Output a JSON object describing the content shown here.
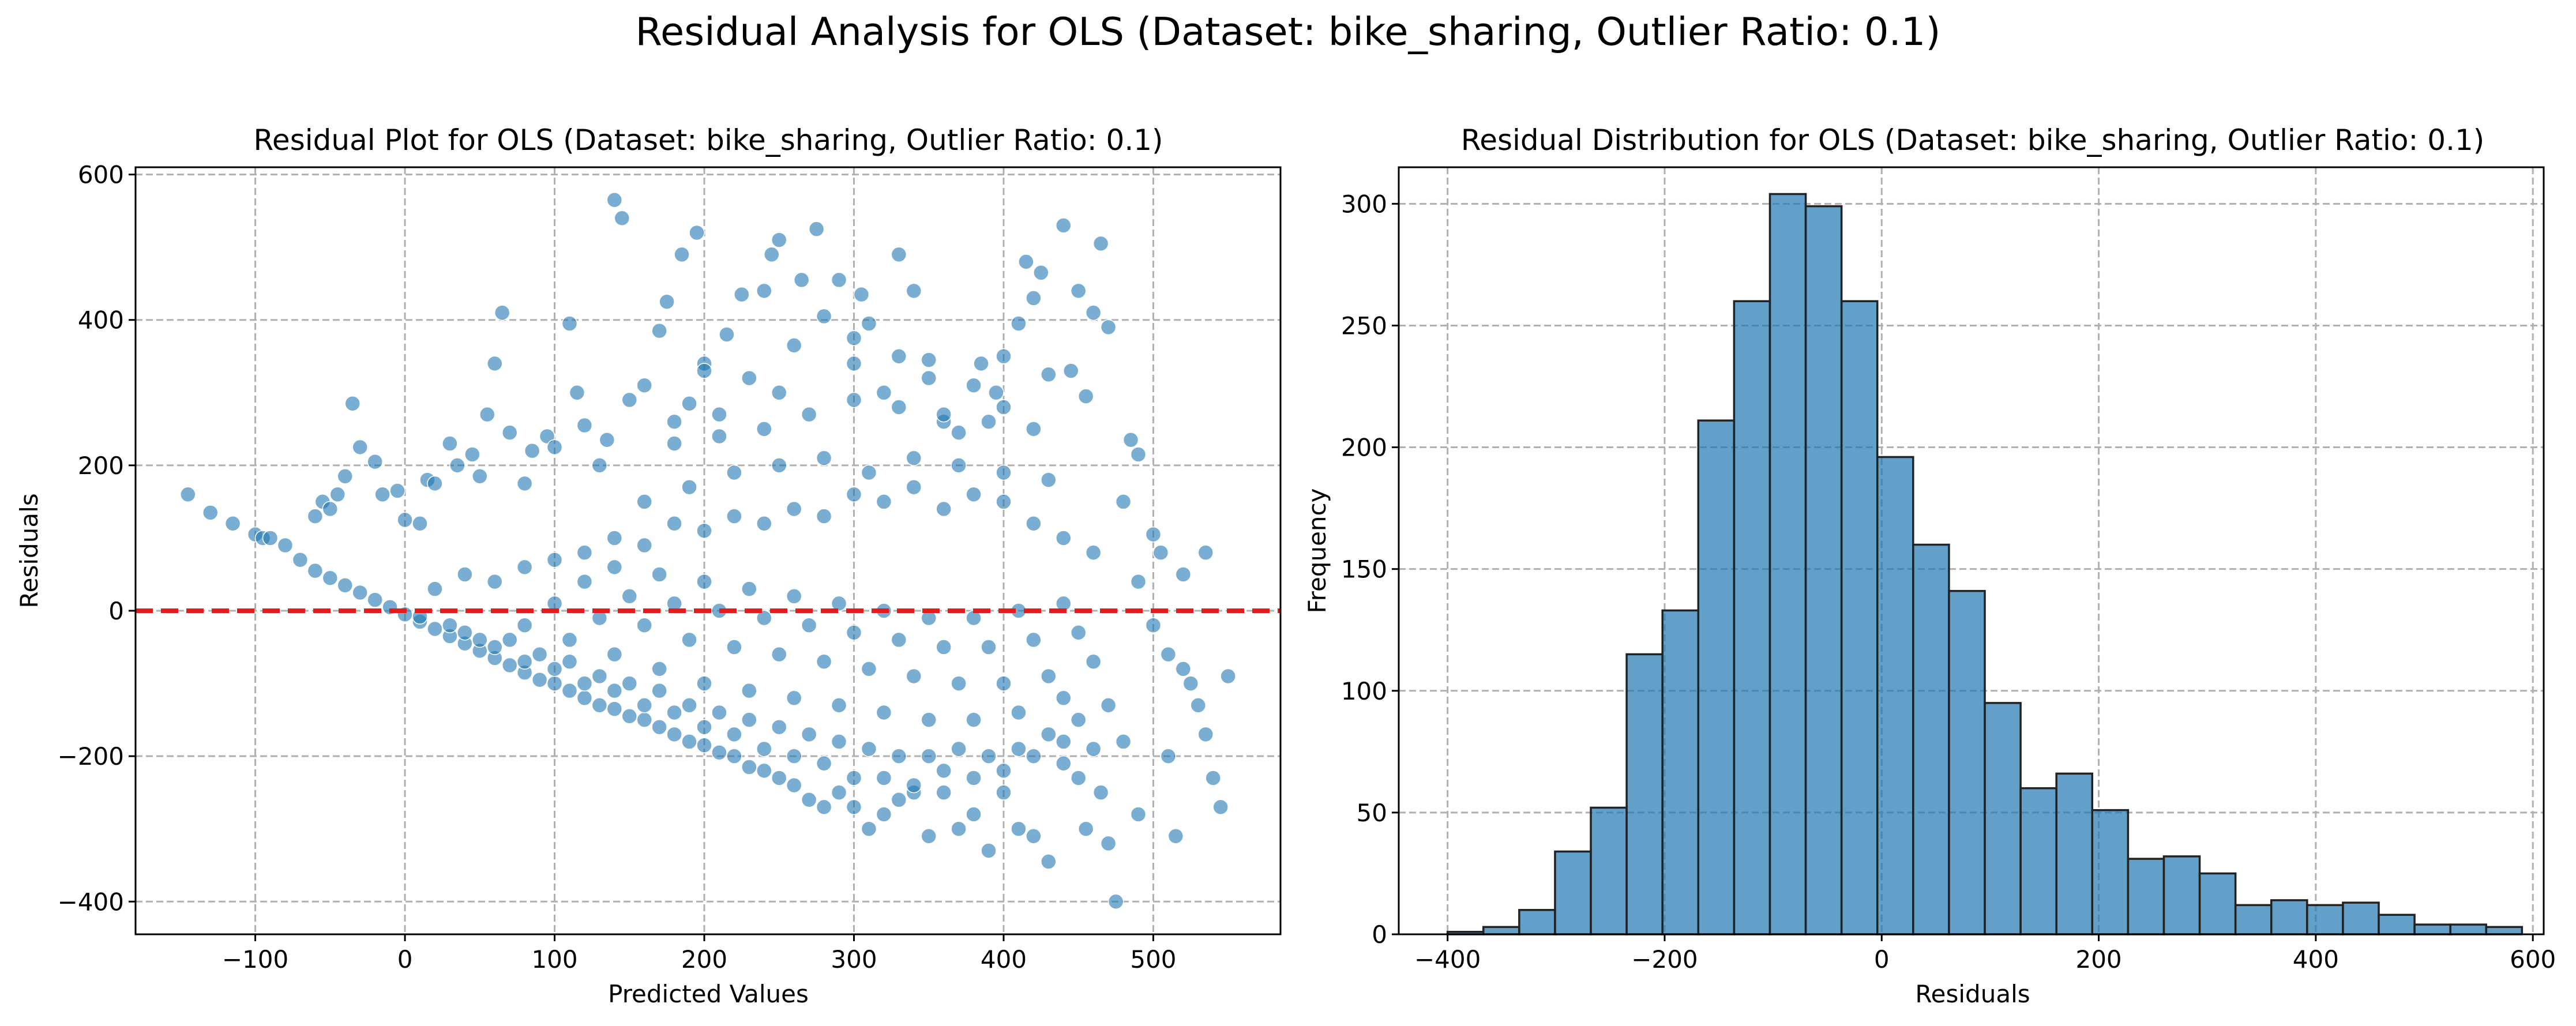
{
  "suptitle": "Residual Analysis for OLS (Dataset: bike_sharing, Outlier Ratio: 0.1)",
  "chart_data": [
    {
      "type": "scatter",
      "title": "Residual Plot for OLS (Dataset: bike_sharing, Outlier Ratio: 0.1)",
      "xlabel": "Predicted Values",
      "ylabel": "Residuals",
      "xlim": [
        -180,
        585
      ],
      "ylim": [
        -445,
        610
      ],
      "xticks": [
        -100,
        0,
        100,
        200,
        300,
        400,
        500
      ],
      "yticks": [
        -400,
        -200,
        0,
        200,
        400,
        600
      ],
      "tick_labels_x": [
        "−100",
        "0",
        "100",
        "200",
        "300",
        "400",
        "500"
      ],
      "tick_labels_y": [
        "−400",
        "−200",
        "0",
        "200",
        "400",
        "600"
      ],
      "grid": true,
      "reference_line": {
        "y": 0,
        "color": "#e41a1c",
        "style": "dashed"
      },
      "marker_color": "#1f77b4",
      "points": [
        [
          -145,
          160
        ],
        [
          -130,
          135
        ],
        [
          -115,
          120
        ],
        [
          -100,
          105
        ],
        [
          -95,
          100
        ],
        [
          -90,
          100
        ],
        [
          -80,
          90
        ],
        [
          -70,
          70
        ],
        [
          -60,
          130
        ],
        [
          -55,
          150
        ],
        [
          -50,
          140
        ],
        [
          -45,
          160
        ],
        [
          -40,
          185
        ],
        [
          -35,
          285
        ],
        [
          -30,
          225
        ],
        [
          -20,
          205
        ],
        [
          -15,
          160
        ],
        [
          -5,
          165
        ],
        [
          0,
          125
        ],
        [
          10,
          120
        ],
        [
          15,
          180
        ],
        [
          20,
          175
        ],
        [
          30,
          230
        ],
        [
          35,
          200
        ],
        [
          45,
          215
        ],
        [
          50,
          185
        ],
        [
          55,
          270
        ],
        [
          60,
          340
        ],
        [
          65,
          410
        ],
        [
          70,
          245
        ],
        [
          80,
          175
        ],
        [
          85,
          220
        ],
        [
          95,
          240
        ],
        [
          100,
          225
        ],
        [
          110,
          395
        ],
        [
          115,
          300
        ],
        [
          120,
          255
        ],
        [
          130,
          200
        ],
        [
          135,
          235
        ],
        [
          140,
          565
        ],
        [
          145,
          540
        ],
        [
          150,
          290
        ],
        [
          160,
          310
        ],
        [
          170,
          385
        ],
        [
          175,
          425
        ],
        [
          180,
          260
        ],
        [
          185,
          490
        ],
        [
          190,
          285
        ],
        [
          195,
          520
        ],
        [
          200,
          340
        ],
        [
          210,
          270
        ],
        [
          215,
          380
        ],
        [
          225,
          435
        ],
        [
          230,
          320
        ],
        [
          240,
          440
        ],
        [
          245,
          490
        ],
        [
          250,
          510
        ],
        [
          260,
          365
        ],
        [
          265,
          455
        ],
        [
          275,
          525
        ],
        [
          280,
          405
        ],
        [
          290,
          455
        ],
        [
          300,
          375
        ],
        [
          305,
          435
        ],
        [
          310,
          395
        ],
        [
          320,
          300
        ],
        [
          330,
          490
        ],
        [
          340,
          440
        ],
        [
          350,
          345
        ],
        [
          360,
          260
        ],
        [
          370,
          245
        ],
        [
          385,
          340
        ],
        [
          395,
          300
        ],
        [
          400,
          280
        ],
        [
          410,
          395
        ],
        [
          415,
          480
        ],
        [
          420,
          430
        ],
        [
          425,
          465
        ],
        [
          430,
          325
        ],
        [
          440,
          530
        ],
        [
          445,
          330
        ],
        [
          450,
          440
        ],
        [
          455,
          295
        ],
        [
          460,
          410
        ],
        [
          465,
          505
        ],
        [
          470,
          390
        ],
        [
          480,
          150
        ],
        [
          485,
          235
        ],
        [
          490,
          215
        ],
        [
          500,
          105
        ],
        [
          505,
          80
        ],
        [
          520,
          50
        ],
        [
          535,
          80
        ],
        [
          490,
          40
        ],
        [
          500,
          -20
        ],
        [
          510,
          -60
        ],
        [
          520,
          -80
        ],
        [
          525,
          -100
        ],
        [
          530,
          -130
        ],
        [
          535,
          -170
        ],
        [
          540,
          -230
        ],
        [
          545,
          -270
        ],
        [
          550,
          -90
        ],
        [
          510,
          -200
        ],
        [
          515,
          -310
        ],
        [
          490,
          -280
        ],
        [
          480,
          -180
        ],
        [
          475,
          -400
        ],
        [
          470,
          -320
        ],
        [
          465,
          -250
        ],
        [
          455,
          -300
        ],
        [
          450,
          -230
        ],
        [
          440,
          -210
        ],
        [
          430,
          -345
        ],
        [
          420,
          -310
        ],
        [
          410,
          -300
        ],
        [
          400,
          -250
        ],
        [
          390,
          -330
        ],
        [
          380,
          -280
        ],
        [
          370,
          -300
        ],
        [
          360,
          -250
        ],
        [
          350,
          -310
        ],
        [
          340,
          -250
        ],
        [
          330,
          -260
        ],
        [
          320,
          -280
        ],
        [
          310,
          -300
        ],
        [
          300,
          -270
        ],
        [
          290,
          -250
        ],
        [
          280,
          -270
        ],
        [
          270,
          -260
        ],
        [
          260,
          -240
        ],
        [
          250,
          -230
        ],
        [
          240,
          -220
        ],
        [
          230,
          -215
        ],
        [
          220,
          -200
        ],
        [
          210,
          -195
        ],
        [
          200,
          -185
        ],
        [
          190,
          -180
        ],
        [
          180,
          -170
        ],
        [
          170,
          -160
        ],
        [
          160,
          -150
        ],
        [
          150,
          -145
        ],
        [
          140,
          -135
        ],
        [
          130,
          -130
        ],
        [
          120,
          -120
        ],
        [
          110,
          -110
        ],
        [
          100,
          -100
        ],
        [
          90,
          -95
        ],
        [
          80,
          -85
        ],
        [
          70,
          -75
        ],
        [
          60,
          -65
        ],
        [
          50,
          -55
        ],
        [
          40,
          -45
        ],
        [
          30,
          -35
        ],
        [
          20,
          -25
        ],
        [
          10,
          -15
        ],
        [
          0,
          -5
        ],
        [
          -10,
          5
        ],
        [
          -20,
          15
        ],
        [
          -30,
          25
        ],
        [
          -40,
          35
        ],
        [
          -50,
          45
        ],
        [
          -60,
          55
        ],
        [
          10,
          -8
        ],
        [
          30,
          -20
        ],
        [
          50,
          -40
        ],
        [
          60,
          -50
        ],
        [
          80,
          -70
        ],
        [
          100,
          -80
        ],
        [
          120,
          -100
        ],
        [
          140,
          -110
        ],
        [
          160,
          -130
        ],
        [
          180,
          -140
        ],
        [
          200,
          -160
        ],
        [
          220,
          -170
        ],
        [
          240,
          -190
        ],
        [
          260,
          -200
        ],
        [
          280,
          -210
        ],
        [
          300,
          -230
        ],
        [
          320,
          -230
        ],
        [
          340,
          -240
        ],
        [
          360,
          -220
        ],
        [
          380,
          -230
        ],
        [
          400,
          -220
        ],
        [
          420,
          -200
        ],
        [
          440,
          -180
        ],
        [
          460,
          -190
        ],
        [
          20,
          30
        ],
        [
          40,
          50
        ],
        [
          60,
          40
        ],
        [
          80,
          60
        ],
        [
          100,
          70
        ],
        [
          120,
          80
        ],
        [
          140,
          100
        ],
        [
          160,
          90
        ],
        [
          180,
          120
        ],
        [
          200,
          110
        ],
        [
          220,
          130
        ],
        [
          240,
          120
        ],
        [
          260,
          140
        ],
        [
          280,
          130
        ],
        [
          300,
          160
        ],
        [
          320,
          150
        ],
        [
          340,
          170
        ],
        [
          360,
          140
        ],
        [
          380,
          160
        ],
        [
          400,
          150
        ],
        [
          420,
          120
        ],
        [
          440,
          100
        ],
        [
          460,
          80
        ],
        [
          40,
          -30
        ],
        [
          70,
          -40
        ],
        [
          90,
          -60
        ],
        [
          110,
          -70
        ],
        [
          130,
          -90
        ],
        [
          150,
          -100
        ],
        [
          170,
          -110
        ],
        [
          190,
          -130
        ],
        [
          210,
          -140
        ],
        [
          230,
          -150
        ],
        [
          250,
          -160
        ],
        [
          270,
          -170
        ],
        [
          290,
          -180
        ],
        [
          310,
          -190
        ],
        [
          330,
          -200
        ],
        [
          350,
          -200
        ],
        [
          370,
          -190
        ],
        [
          390,
          -200
        ],
        [
          410,
          -190
        ],
        [
          430,
          -170
        ],
        [
          450,
          -150
        ],
        [
          470,
          -130
        ],
        [
          80,
          -20
        ],
        [
          110,
          -40
        ],
        [
          140,
          -60
        ],
        [
          170,
          -80
        ],
        [
          200,
          -100
        ],
        [
          230,
          -110
        ],
        [
          260,
          -120
        ],
        [
          290,
          -130
        ],
        [
          320,
          -140
        ],
        [
          350,
          -150
        ],
        [
          380,
          -150
        ],
        [
          410,
          -140
        ],
        [
          440,
          -120
        ],
        [
          100,
          10
        ],
        [
          130,
          -10
        ],
        [
          160,
          -20
        ],
        [
          190,
          -40
        ],
        [
          220,
          -50
        ],
        [
          250,
          -60
        ],
        [
          280,
          -70
        ],
        [
          310,
          -80
        ],
        [
          340,
          -90
        ],
        [
          370,
          -100
        ],
        [
          400,
          -100
        ],
        [
          430,
          -90
        ],
        [
          460,
          -70
        ],
        [
          120,
          40
        ],
        [
          150,
          20
        ],
        [
          180,
          10
        ],
        [
          210,
          0
        ],
        [
          240,
          -10
        ],
        [
          270,
          -20
        ],
        [
          300,
          -30
        ],
        [
          330,
          -40
        ],
        [
          360,
          -50
        ],
        [
          390,
          -50
        ],
        [
          420,
          -40
        ],
        [
          450,
          -30
        ],
        [
          140,
          60
        ],
        [
          170,
          50
        ],
        [
          200,
          40
        ],
        [
          230,
          30
        ],
        [
          260,
          20
        ],
        [
          290,
          10
        ],
        [
          320,
          0
        ],
        [
          350,
          -10
        ],
        [
          380,
          -10
        ],
        [
          410,
          0
        ],
        [
          440,
          10
        ],
        [
          160,
          150
        ],
        [
          190,
          170
        ],
        [
          220,
          190
        ],
        [
          250,
          200
        ],
        [
          280,
          210
        ],
        [
          310,
          190
        ],
        [
          340,
          210
        ],
        [
          370,
          200
        ],
        [
          400,
          190
        ],
        [
          430,
          180
        ],
        [
          180,
          230
        ],
        [
          210,
          240
        ],
        [
          240,
          250
        ],
        [
          270,
          270
        ],
        [
          300,
          290
        ],
        [
          330,
          280
        ],
        [
          360,
          270
        ],
        [
          390,
          260
        ],
        [
          420,
          250
        ],
        [
          200,
          330
        ],
        [
          250,
          300
        ],
        [
          300,
          340
        ],
        [
          350,
          320
        ],
        [
          400,
          350
        ],
        [
          380,
          310
        ],
        [
          330,
          350
        ]
      ]
    },
    {
      "type": "bar",
      "subtype": "histogram",
      "title": "Residual Distribution for OLS (Dataset: bike_sharing, Outlier Ratio: 0.1)",
      "xlabel": "Residuals",
      "ylabel": "Frequency",
      "xlim": [
        -445,
        610
      ],
      "ylim": [
        0,
        315
      ],
      "xticks": [
        -400,
        -200,
        0,
        200,
        400,
        600
      ],
      "yticks": [
        0,
        50,
        100,
        150,
        200,
        250,
        300
      ],
      "tick_labels_x": [
        "−400",
        "−200",
        "0",
        "200",
        "400",
        "600"
      ],
      "tick_labels_y": [
        "0",
        "50",
        "100",
        "150",
        "200",
        "250",
        "300"
      ],
      "grid": true,
      "bar_color": "#1f77b4",
      "bin_start": -400,
      "bin_width": 33,
      "values": [
        1,
        3,
        10,
        34,
        52,
        115,
        133,
        211,
        260,
        304,
        299,
        260,
        196,
        160,
        141,
        95,
        60,
        66,
        51,
        31,
        32,
        25,
        12,
        14,
        12,
        13,
        8,
        4,
        4,
        3
      ]
    }
  ]
}
